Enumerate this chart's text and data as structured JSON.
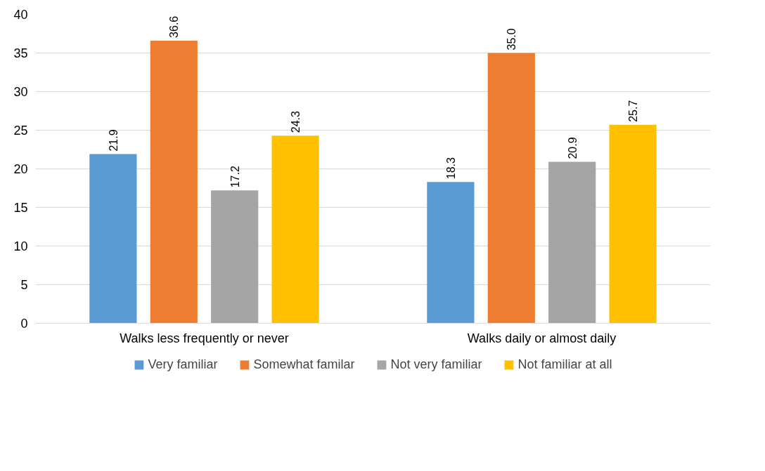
{
  "chart_data": {
    "type": "bar",
    "categories": [
      "Walks less frequently or never",
      "Walks daily or almost daily"
    ],
    "series": [
      {
        "name": "Very familiar",
        "color": "#5b9bd5",
        "values": [
          21.9,
          18.3
        ],
        "value_labels": [
          "21.9",
          "18.3"
        ]
      },
      {
        "name": "Somewhat familar",
        "color": "#ed7d31",
        "values": [
          36.6,
          35.0
        ],
        "value_labels": [
          "36.6",
          "35.0"
        ]
      },
      {
        "name": "Not very familiar",
        "color": "#a5a5a5",
        "values": [
          17.2,
          20.9
        ],
        "value_labels": [
          "17.2",
          "20.9"
        ]
      },
      {
        "name": "Not familiar at all",
        "color": "#ffc000",
        "values": [
          24.3,
          25.7
        ],
        "value_labels": [
          "24.3",
          "25.7"
        ]
      }
    ],
    "ylim": [
      0,
      40
    ],
    "yticks": [
      0,
      5,
      10,
      15,
      20,
      25,
      30,
      35,
      40
    ],
    "grid": "y",
    "legend": "bottom"
  }
}
